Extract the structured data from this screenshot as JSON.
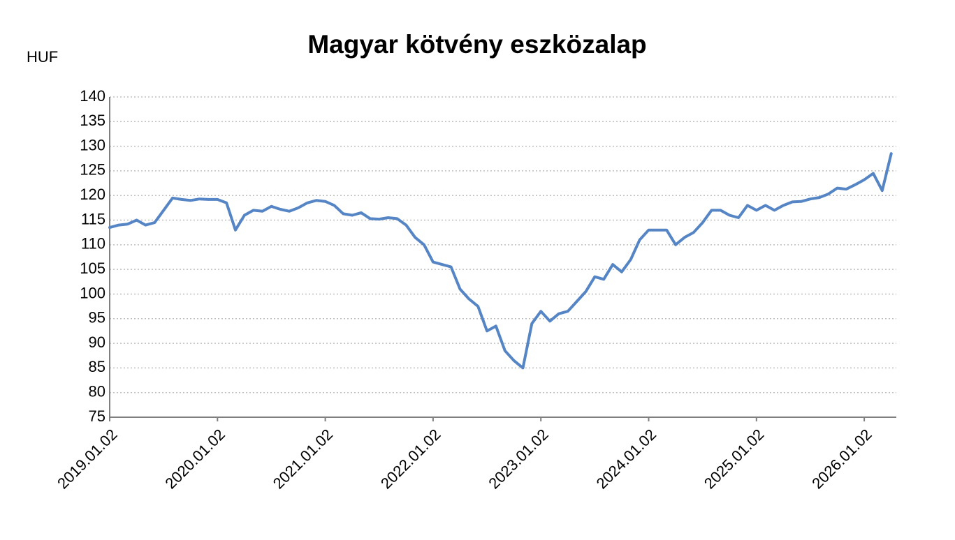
{
  "chart_data": {
    "type": "line",
    "title": "Magyar kötvény eszközalap",
    "y_label": "HUF",
    "categories": [
      "2019.01.02",
      null,
      null,
      null,
      null,
      null,
      null,
      null,
      null,
      null,
      null,
      null,
      "2020.01.02",
      null,
      null,
      null,
      null,
      null,
      null,
      null,
      null,
      null,
      null,
      null,
      "2021.01.02",
      null,
      null,
      null,
      null,
      null,
      null,
      null,
      null,
      null,
      null,
      null,
      "2022.01.02",
      null,
      null,
      null,
      null,
      null,
      null,
      null,
      null,
      null,
      null,
      null,
      "2023.01.02",
      null,
      null,
      null,
      null,
      null,
      null,
      null,
      null,
      null,
      null,
      null,
      "2024.01.02",
      null,
      null,
      null,
      null,
      null,
      null,
      null,
      null,
      null,
      null,
      null,
      "2025.01.02",
      null,
      null,
      null,
      null,
      null,
      null,
      null,
      null,
      null,
      null,
      null,
      "2026.01.02",
      null,
      null,
      null
    ],
    "values": [
      113.5,
      114,
      114.2,
      115,
      114,
      114.5,
      117,
      119.5,
      119.2,
      119,
      119.3,
      119.2,
      119.2,
      118.5,
      113,
      116,
      117,
      116.8,
      117.8,
      117.2,
      116.8,
      117.5,
      118.5,
      119,
      118.8,
      118,
      116.3,
      116,
      116.5,
      115.3,
      115.2,
      115.5,
      115.3,
      114,
      111.5,
      110,
      106.5,
      106,
      105.5,
      101,
      99,
      97.5,
      92.5,
      93.5,
      88.5,
      86.5,
      85,
      94,
      96.5,
      94.5,
      96,
      96.5,
      98.5,
      100.5,
      103.5,
      103,
      106,
      104.5,
      107,
      111,
      113,
      113,
      113,
      110,
      111.5,
      112.5,
      114.5,
      117,
      117,
      116,
      115.5,
      118,
      117,
      118,
      117,
      118,
      118.7,
      118.8,
      119.3,
      119.6,
      120.3,
      121.5,
      121.3,
      122.2,
      123.2,
      124.5,
      121,
      128.5
    ],
    "color": "#5585c4",
    "ylim": [
      75,
      140
    ],
    "yticks": [
      75,
      80,
      85,
      90,
      95,
      100,
      105,
      110,
      115,
      120,
      125,
      130,
      135,
      140
    ],
    "grid": true
  }
}
